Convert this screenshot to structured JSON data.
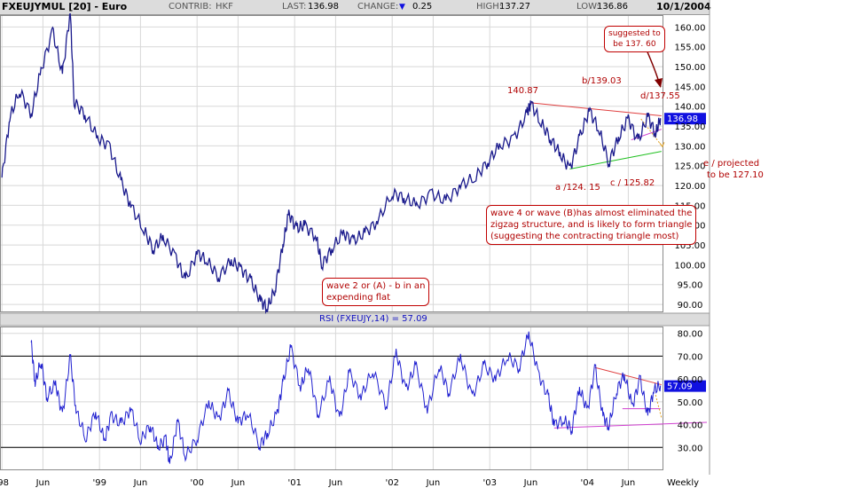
{
  "header": {
    "symbol": "FXEUJYMUL [20] - Euro",
    "contrib_label": "CONTRIB:",
    "contrib_value": "HKF",
    "last_label": "LAST:",
    "last_value": "136.98",
    "change_label": "CHANGE:",
    "change_value": "0.25",
    "high_label": "HIGH:",
    "high_value": "137.27",
    "low_label": "LOW:",
    "low_value": "136.86",
    "date": "10/1/2004"
  },
  "colors": {
    "price_line": "#1a1a8c",
    "rsi_line": "#2020d0",
    "annotation": "#c00000",
    "trend_red": "#e04040",
    "trend_green": "#20c020",
    "trend_magenta": "#d040d0",
    "grid": "#d8d8d8",
    "last_box": "#1010e0"
  },
  "annotations": {
    "wave2_line1": "wave 2 or (A) - b in an",
    "wave2_line2": "expending flat",
    "wave4_line1": "wave 4 or wave (B)has almost eliminated the",
    "wave4_line2": "zigzag structure, and is likely to form triangle",
    "wave4_line3": "(suggesting the contracting triangle most)",
    "suggested_line1": "suggested to",
    "suggested_line2": "be 137. 60",
    "e_line1": "e / projected",
    "e_line2": "to be 127.10",
    "pt_14087": "140.87",
    "pt_b": "b/139.03",
    "pt_d": "d/137.55",
    "pt_a": "a /124. 15",
    "pt_c": "c / 125.82"
  },
  "chart_data": [
    {
      "type": "line",
      "series": [
        {
          "values": [
            {
              "x": 1998.0,
              "y": 122
            },
            {
              "x": 1998.08,
              "y": 137
            },
            {
              "x": 1998.18,
              "y": 144
            },
            {
              "x": 1998.3,
              "y": 138
            },
            {
              "x": 1998.4,
              "y": 149
            },
            {
              "x": 1998.52,
              "y": 159
            },
            {
              "x": 1998.62,
              "y": 148
            },
            {
              "x": 1998.7,
              "y": 164
            },
            {
              "x": 1998.74,
              "y": 141
            },
            {
              "x": 1998.85,
              "y": 138
            },
            {
              "x": 1998.98,
              "y": 132
            },
            {
              "x": 1999.1,
              "y": 130
            },
            {
              "x": 1999.22,
              "y": 121
            },
            {
              "x": 1999.32,
              "y": 115
            },
            {
              "x": 1999.45,
              "y": 109
            },
            {
              "x": 1999.55,
              "y": 104
            },
            {
              "x": 1999.65,
              "y": 107
            },
            {
              "x": 1999.78,
              "y": 102
            },
            {
              "x": 1999.88,
              "y": 96
            },
            {
              "x": 2000.0,
              "y": 103
            },
            {
              "x": 2000.1,
              "y": 101
            },
            {
              "x": 2000.22,
              "y": 97
            },
            {
              "x": 2000.35,
              "y": 101
            },
            {
              "x": 2000.45,
              "y": 99
            },
            {
              "x": 2000.55,
              "y": 96
            },
            {
              "x": 2000.65,
              "y": 91
            },
            {
              "x": 2000.72,
              "y": 89
            },
            {
              "x": 2000.8,
              "y": 94
            },
            {
              "x": 2000.88,
              "y": 105
            },
            {
              "x": 2000.94,
              "y": 113
            },
            {
              "x": 2001.02,
              "y": 109
            },
            {
              "x": 2001.1,
              "y": 110
            },
            {
              "x": 2001.22,
              "y": 107
            },
            {
              "x": 2001.28,
              "y": 100
            },
            {
              "x": 2001.38,
              "y": 104
            },
            {
              "x": 2001.5,
              "y": 108
            },
            {
              "x": 2001.6,
              "y": 106
            },
            {
              "x": 2001.72,
              "y": 108
            },
            {
              "x": 2001.85,
              "y": 111
            },
            {
              "x": 2002.0,
              "y": 118
            },
            {
              "x": 2002.12,
              "y": 117
            },
            {
              "x": 2002.25,
              "y": 115
            },
            {
              "x": 2002.4,
              "y": 118
            },
            {
              "x": 2002.55,
              "y": 116
            },
            {
              "x": 2002.7,
              "y": 120
            },
            {
              "x": 2002.85,
              "y": 122
            },
            {
              "x": 2002.98,
              "y": 126
            },
            {
              "x": 2003.1,
              "y": 130
            },
            {
              "x": 2003.25,
              "y": 132
            },
            {
              "x": 2003.38,
              "y": 138
            },
            {
              "x": 2003.42,
              "y": 140.87
            },
            {
              "x": 2003.52,
              "y": 136
            },
            {
              "x": 2003.62,
              "y": 132
            },
            {
              "x": 2003.72,
              "y": 128
            },
            {
              "x": 2003.82,
              "y": 124.15
            },
            {
              "x": 2003.92,
              "y": 132
            },
            {
              "x": 2004.02,
              "y": 139.03
            },
            {
              "x": 2004.12,
              "y": 134
            },
            {
              "x": 2004.22,
              "y": 125.82
            },
            {
              "x": 2004.32,
              "y": 132
            },
            {
              "x": 2004.42,
              "y": 137
            },
            {
              "x": 2004.52,
              "y": 131
            },
            {
              "x": 2004.62,
              "y": 137.55
            },
            {
              "x": 2004.7,
              "y": 133
            },
            {
              "x": 2004.75,
              "y": 136.98
            }
          ]
        }
      ],
      "yticks": [
        "90.00",
        "95.00",
        "100.00",
        "105.00",
        "110.00",
        "115.00",
        "120.00",
        "125.00",
        "130.00",
        "135.00",
        "140.00",
        "145.00",
        "150.00",
        "155.00",
        "160.00"
      ],
      "ylim": [
        88,
        163
      ],
      "xlim": [
        1997.98,
        2004.78
      ],
      "xticks": [
        {
          "label": "'98",
          "x": 1998.0
        },
        {
          "label": "Jun",
          "x": 1998.42
        },
        {
          "label": "'99",
          "x": 1999.0
        },
        {
          "label": "Jun",
          "x": 1999.42
        },
        {
          "label": "'00",
          "x": 2000.0
        },
        {
          "label": "Jun",
          "x": 2000.42
        },
        {
          "label": "'01",
          "x": 2001.0
        },
        {
          "label": "Jun",
          "x": 2001.42
        },
        {
          "label": "'02",
          "x": 2002.0
        },
        {
          "label": "Jun",
          "x": 2002.42
        },
        {
          "label": "'03",
          "x": 2003.0
        },
        {
          "label": "Jun",
          "x": 2003.42
        },
        {
          "label": "'04",
          "x": 2004.0
        },
        {
          "label": "Jun",
          "x": 2004.42
        }
      ],
      "x_period_label": "Weekly",
      "last_label": "136.98",
      "grid": true
    },
    {
      "type": "line",
      "title": "RSI (FXEUJY,14) = 57.09",
      "series": [
        {
          "values": [
            {
              "x": 1998.3,
              "y": 76
            },
            {
              "x": 1998.34,
              "y": 58
            },
            {
              "x": 1998.4,
              "y": 68
            },
            {
              "x": 1998.46,
              "y": 52
            },
            {
              "x": 1998.55,
              "y": 58
            },
            {
              "x": 1998.62,
              "y": 44
            },
            {
              "x": 1998.7,
              "y": 70
            },
            {
              "x": 1998.76,
              "y": 46
            },
            {
              "x": 1998.86,
              "y": 34
            },
            {
              "x": 1998.96,
              "y": 46
            },
            {
              "x": 1999.05,
              "y": 33
            },
            {
              "x": 1999.12,
              "y": 44
            },
            {
              "x": 1999.22,
              "y": 40
            },
            {
              "x": 1999.32,
              "y": 47
            },
            {
              "x": 1999.42,
              "y": 33
            },
            {
              "x": 1999.52,
              "y": 40
            },
            {
              "x": 1999.6,
              "y": 30
            },
            {
              "x": 1999.68,
              "y": 34
            },
            {
              "x": 1999.72,
              "y": 22
            },
            {
              "x": 1999.8,
              "y": 42
            },
            {
              "x": 1999.88,
              "y": 26
            },
            {
              "x": 2000.0,
              "y": 34
            },
            {
              "x": 2000.12,
              "y": 50
            },
            {
              "x": 2000.22,
              "y": 42
            },
            {
              "x": 2000.32,
              "y": 54
            },
            {
              "x": 2000.42,
              "y": 41
            },
            {
              "x": 2000.52,
              "y": 45
            },
            {
              "x": 2000.64,
              "y": 31
            },
            {
              "x": 2000.72,
              "y": 36
            },
            {
              "x": 2000.82,
              "y": 45
            },
            {
              "x": 2000.88,
              "y": 58
            },
            {
              "x": 2000.96,
              "y": 74
            },
            {
              "x": 2001.06,
              "y": 56
            },
            {
              "x": 2001.14,
              "y": 66
            },
            {
              "x": 2001.24,
              "y": 44
            },
            {
              "x": 2001.36,
              "y": 60
            },
            {
              "x": 2001.46,
              "y": 42
            },
            {
              "x": 2001.56,
              "y": 63
            },
            {
              "x": 2001.68,
              "y": 52
            },
            {
              "x": 2001.8,
              "y": 64
            },
            {
              "x": 2001.94,
              "y": 48
            },
            {
              "x": 2002.04,
              "y": 72
            },
            {
              "x": 2002.14,
              "y": 55
            },
            {
              "x": 2002.24,
              "y": 66
            },
            {
              "x": 2002.36,
              "y": 46
            },
            {
              "x": 2002.48,
              "y": 66
            },
            {
              "x": 2002.58,
              "y": 54
            },
            {
              "x": 2002.7,
              "y": 70
            },
            {
              "x": 2002.82,
              "y": 52
            },
            {
              "x": 2002.94,
              "y": 66
            },
            {
              "x": 2003.06,
              "y": 60
            },
            {
              "x": 2003.18,
              "y": 70
            },
            {
              "x": 2003.3,
              "y": 65
            },
            {
              "x": 2003.4,
              "y": 80
            },
            {
              "x": 2003.5,
              "y": 62
            },
            {
              "x": 2003.6,
              "y": 52
            },
            {
              "x": 2003.66,
              "y": 40
            },
            {
              "x": 2003.76,
              "y": 42
            },
            {
              "x": 2003.84,
              "y": 38
            },
            {
              "x": 2003.92,
              "y": 56
            },
            {
              "x": 2004.0,
              "y": 46
            },
            {
              "x": 2004.08,
              "y": 65
            },
            {
              "x": 2004.16,
              "y": 44
            },
            {
              "x": 2004.22,
              "y": 39
            },
            {
              "x": 2004.3,
              "y": 55
            },
            {
              "x": 2004.38,
              "y": 62
            },
            {
              "x": 2004.46,
              "y": 48
            },
            {
              "x": 2004.54,
              "y": 60
            },
            {
              "x": 2004.62,
              "y": 44
            },
            {
              "x": 2004.68,
              "y": 55
            },
            {
              "x": 2004.75,
              "y": 57.09
            }
          ]
        }
      ],
      "yticks": [
        "30.00",
        "40.00",
        "50.00",
        "60.00",
        "70.00",
        "80.00"
      ],
      "ylim": [
        20,
        83
      ],
      "xlim": [
        1997.98,
        2004.78
      ],
      "reference_lines": [
        30,
        70
      ],
      "last_label": "57.09",
      "grid": true
    }
  ]
}
